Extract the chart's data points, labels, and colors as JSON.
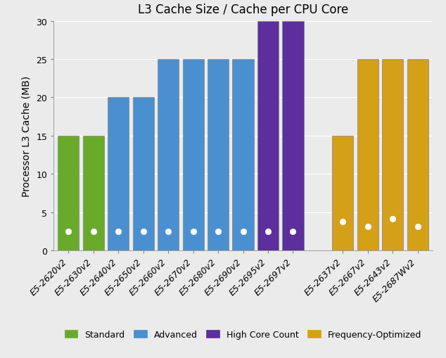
{
  "title": "L3 Cache Size / Cache per CPU Core",
  "ylabel": "Processor L3 Cache (MB)",
  "categories": [
    "E5-2620v2",
    "E5-2630v2",
    "E5-2640v2",
    "E5-2650v2",
    "E5-2660v2",
    "E5-2670v2",
    "E5-2680v2",
    "E5-2690v2",
    "E5-2695v2",
    "E5-2697v2",
    "E5-2637v2",
    "E5-2667v2",
    "E5-2643v2",
    "E5-2687Wv2"
  ],
  "values": [
    15,
    15,
    20,
    20,
    25,
    25,
    25,
    25,
    30,
    30,
    15,
    25,
    25,
    25
  ],
  "dot_values": [
    2.5,
    2.5,
    2.5,
    2.5,
    2.5,
    2.5,
    2.5,
    2.5,
    2.5,
    2.5,
    3.75,
    3.125,
    4.166,
    3.125
  ],
  "colors": [
    "#6aaa2a",
    "#6aaa2a",
    "#4a90d0",
    "#4a90d0",
    "#4a90d0",
    "#4a90d0",
    "#4a90d0",
    "#4a90d0",
    "#5c2f9c",
    "#5c2f9c",
    "#d4a017",
    "#d4a017",
    "#d4a017",
    "#d4a017"
  ],
  "bar_positions": [
    1,
    2,
    3,
    4,
    5,
    6,
    7,
    8,
    9,
    10,
    12,
    13,
    14,
    15
  ],
  "ylim": [
    0,
    30
  ],
  "yticks": [
    0,
    5,
    10,
    15,
    20,
    25,
    30
  ],
  "legend_labels": [
    "Standard",
    "Advanced",
    "High Core Count",
    "Frequency-Optimized"
  ],
  "legend_colors": [
    "#6aaa2a",
    "#4a90d0",
    "#5c2f9c",
    "#d4a017"
  ],
  "bg_color": "#ebebeb",
  "panel_color": "#ebebeb",
  "edge_color": "#ffffff",
  "bar_edge_color": "#808080",
  "bar_width": 0.85,
  "title_fontsize": 12,
  "axis_fontsize": 9,
  "ylabel_fontsize": 10
}
